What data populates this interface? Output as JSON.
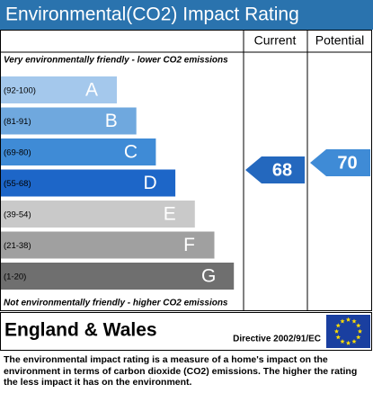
{
  "chart_data": {
    "type": "epc",
    "title": "Environmental(CO2) Impact Rating",
    "top_note": "Very environmentally friendly - lower CO2 emissions",
    "bottom_note": "Not environmentally friendly - higher CO2 emissions",
    "categories": [
      "(92-100)",
      "(81-91)",
      "(69-80)",
      "(55-68)",
      "(39-54)",
      "(21-38)",
      "(1-20)"
    ],
    "letters": [
      "A",
      "B",
      "C",
      "D",
      "E",
      "F",
      "G"
    ],
    "colors": [
      "#a4c8ec",
      "#6fa8de",
      "#3f8bd6",
      "#1d66c8",
      "#c9c9c9",
      "#a0a0a0",
      "#6f6f6f"
    ],
    "series": [
      {
        "name": "Current",
        "value": 68,
        "color": "#2468be"
      },
      {
        "name": "Potential",
        "value": 70,
        "color": "#3f8bd6"
      }
    ],
    "region": "England & Wales",
    "directive": "Directive 2002/91/EC",
    "description": "The environmental impact rating is a measure of a home's impact on the environment in terms of carbon dioxide (CO2) emissions. The higher the rating the less impact it has on the environment."
  }
}
